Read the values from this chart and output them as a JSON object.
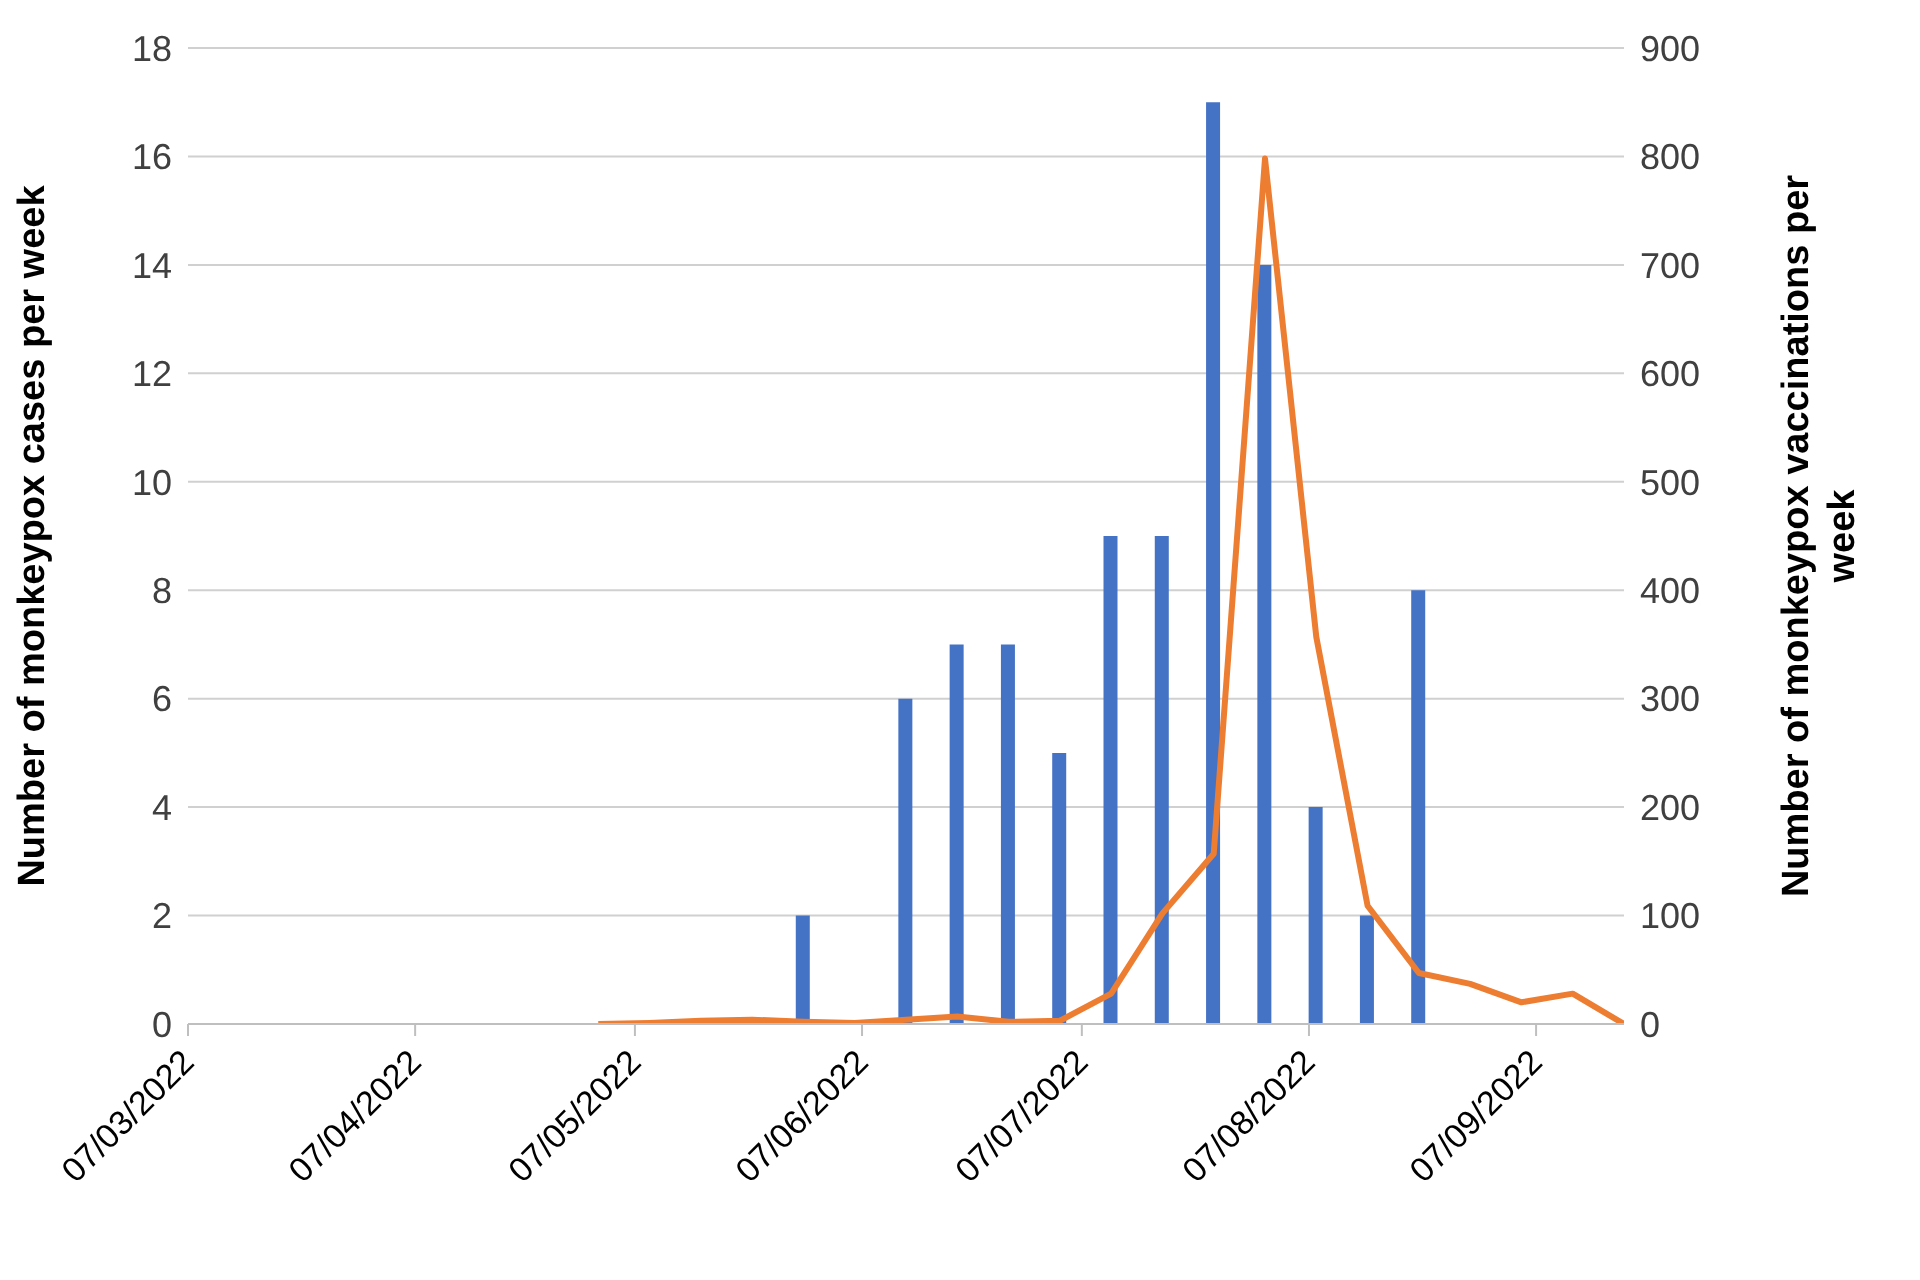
{
  "chart_data": {
    "type": "bar",
    "ylabel": "Number of monkeypox cases per week",
    "y2label": "Number of monkeypox vaccinations per week",
    "x": [
      "2022-05-02",
      "2022-05-09",
      "2022-05-16",
      "2022-05-23",
      "2022-05-30",
      "2022-06-06",
      "2022-06-13",
      "2022-06-20",
      "2022-06-27",
      "2022-07-04",
      "2022-07-11",
      "2022-07-18",
      "2022-07-25",
      "2022-08-01",
      "2022-08-08",
      "2022-08-15",
      "2022-08-22",
      "2022-08-29",
      "2022-09-05",
      "2022-09-12",
      "2022-09-19"
    ],
    "series": [
      {
        "color": "#4472c4",
        "values": [
          0,
          0,
          0,
          0,
          2,
          0,
          6,
          7,
          7,
          5,
          9,
          9,
          17,
          14,
          4,
          2,
          8,
          0,
          0,
          0,
          0
        ]
      },
      {
        "type": "line",
        "axis": "y2",
        "color": "#ed7d31",
        "values": [
          0,
          1,
          3,
          4,
          2,
          1,
          4,
          7,
          2,
          3,
          28,
          102,
          157,
          798,
          357,
          109,
          47,
          37,
          20,
          28,
          0
        ]
      }
    ],
    "xlim": [
      "2022-03-07",
      "2022-09-19"
    ],
    "xticks": [
      {
        "value": "2022-03-07",
        "label": "07/03/2022"
      },
      {
        "value": "2022-04-07",
        "label": "07/04/2022"
      },
      {
        "value": "2022-05-07",
        "label": "07/05/2022"
      },
      {
        "value": "2022-06-07",
        "label": "07/06/2022"
      },
      {
        "value": "2022-07-07",
        "label": "07/07/2022"
      },
      {
        "value": "2022-08-07",
        "label": "07/08/2022"
      },
      {
        "value": "2022-09-07",
        "label": "07/09/2022"
      }
    ],
    "ylim": [
      0,
      18
    ],
    "yticks": [
      0,
      2,
      4,
      6,
      8,
      10,
      12,
      14,
      16,
      18
    ],
    "y2lim": [
      0,
      900
    ],
    "y2ticks": [
      0,
      100,
      200,
      300,
      400,
      500,
      600,
      700,
      800,
      900
    ],
    "grid": "y",
    "legend": false
  }
}
